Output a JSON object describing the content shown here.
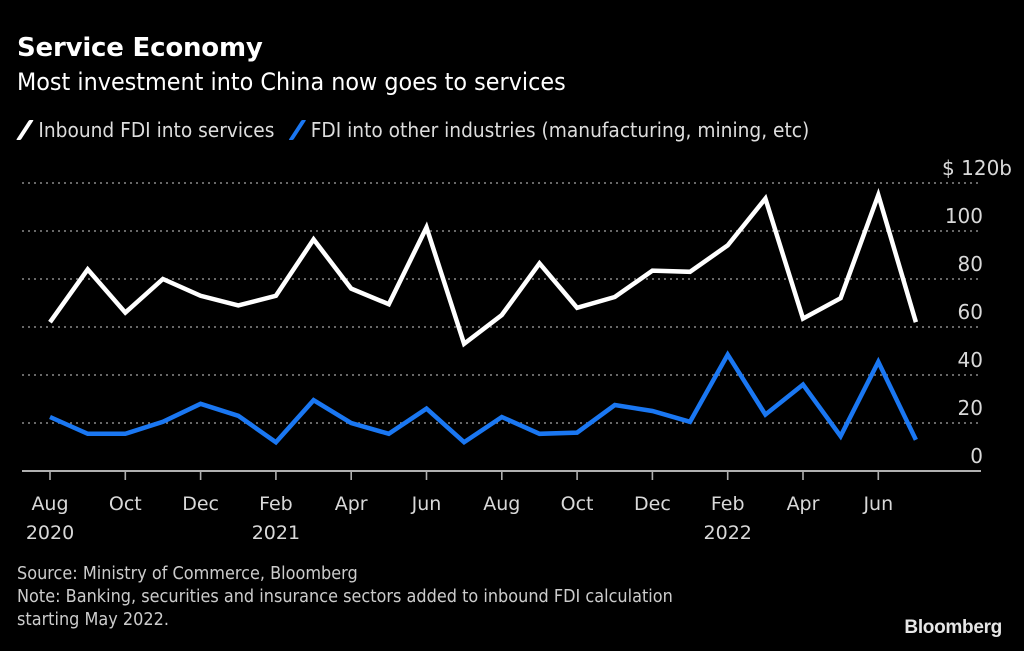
{
  "chart_data": {
    "type": "line",
    "title": "Service Economy",
    "subtitle": "Most investment into China now goes to services",
    "xlabel": "",
    "ylabel": "",
    "y_unit_label": "$ 120b",
    "ylim": [
      0,
      120
    ],
    "yticks": [
      0,
      20,
      40,
      60,
      80,
      100,
      120
    ],
    "ytick_labels": [
      "0",
      "20",
      "40",
      "60",
      "80",
      "100",
      "$ 120b"
    ],
    "grid": true,
    "legend_position": "top-left",
    "x": [
      "2020-08",
      "2020-09",
      "2020-10",
      "2020-11",
      "2020-12",
      "2021-01",
      "2021-02",
      "2021-03",
      "2021-04",
      "2021-05",
      "2021-06",
      "2021-07",
      "2021-08",
      "2021-09",
      "2021-10",
      "2021-11",
      "2021-12",
      "2022-01",
      "2022-02",
      "2022-03",
      "2022-04",
      "2022-05",
      "2022-06",
      "2022-07"
    ],
    "xticks": [
      {
        "index": 0,
        "label": "Aug",
        "year": "2020"
      },
      {
        "index": 2,
        "label": "Oct",
        "year": ""
      },
      {
        "index": 4,
        "label": "Dec",
        "year": ""
      },
      {
        "index": 6,
        "label": "Feb",
        "year": "2021"
      },
      {
        "index": 8,
        "label": "Apr",
        "year": ""
      },
      {
        "index": 10,
        "label": "Jun",
        "year": ""
      },
      {
        "index": 12,
        "label": "Aug",
        "year": ""
      },
      {
        "index": 14,
        "label": "Oct",
        "year": ""
      },
      {
        "index": 16,
        "label": "Dec",
        "year": ""
      },
      {
        "index": 18,
        "label": "Feb",
        "year": "2022"
      },
      {
        "index": 20,
        "label": "Apr",
        "year": ""
      },
      {
        "index": 22,
        "label": "Jun",
        "year": ""
      }
    ],
    "series": [
      {
        "name": "Inbound FDI into services",
        "color": "#ffffff",
        "values": [
          62,
          84,
          66,
          80,
          73,
          69,
          73,
          96.5,
          76,
          69.5,
          101.5,
          53,
          65,
          86.5,
          68,
          72.5,
          83.5,
          83,
          94,
          113.5,
          63.5,
          72,
          115,
          62
        ]
      },
      {
        "name": "FDI into other industries (manufacturing, mining, etc)",
        "color": "#1a77f2",
        "values": [
          22.5,
          15.5,
          15.5,
          20.5,
          28,
          23,
          12,
          29.5,
          20,
          15.5,
          26,
          12,
          22.5,
          15.5,
          16,
          27.5,
          25,
          20.5,
          48.5,
          23.5,
          36,
          14.5,
          45.5,
          13
        ]
      }
    ]
  },
  "header": {
    "title": "Service Economy",
    "subtitle": "Most investment into China now goes to services"
  },
  "legend": {
    "items": [
      {
        "label": "Inbound FDI into services",
        "color": "#ffffff"
      },
      {
        "label": "FDI into other industries (manufacturing, mining, etc)",
        "color": "#1a77f2"
      }
    ]
  },
  "footer": {
    "source": "Source: Ministry of Commerce, Bloomberg",
    "note_line1": "Note: Banking, securities and insurance sectors added to inbound FDI calculation",
    "note_line2": "starting May 2022."
  },
  "brand": "Bloomberg"
}
